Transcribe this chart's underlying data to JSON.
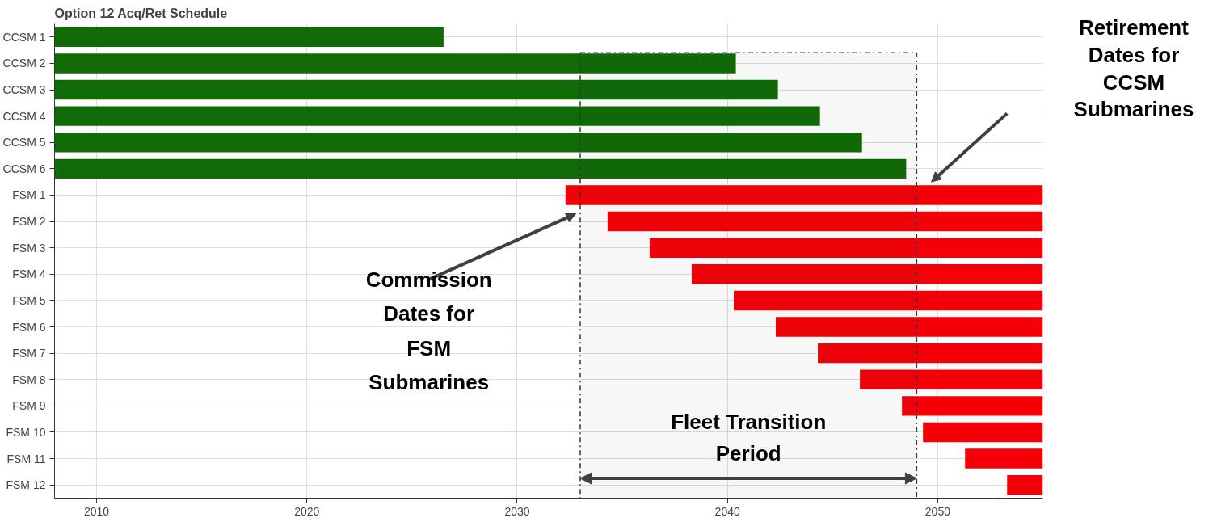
{
  "chart_data": {
    "type": "bar",
    "orientation": "horizontal",
    "title": "Option 12 Acq/Ret Schedule",
    "categories": [
      "CCSM 1",
      "CCSM 2",
      "CCSM 3",
      "CCSM 4",
      "CCSM 5",
      "CCSM 6",
      "FSM 1",
      "FSM 2",
      "FSM 3",
      "FSM 4",
      "FSM 5",
      "FSM 6",
      "FSM 7",
      "FSM 8",
      "FSM 9",
      "FSM 10",
      "FSM 11",
      "FSM 12"
    ],
    "base": [
      2008,
      2008,
      2008,
      2008,
      2008,
      2008,
      2032.3,
      2034.3,
      2036.3,
      2038.3,
      2040.3,
      2042.3,
      2044.3,
      2046.3,
      2048.3,
      2049.3,
      2051.3,
      2053.3
    ],
    "values": [
      18.5,
      32.4,
      34.4,
      36.4,
      38.4,
      40.5,
      22.7,
      20.7,
      18.7,
      16.7,
      14.7,
      12.7,
      10.7,
      8.7,
      6.7,
      5.7,
      3.7,
      1.7
    ],
    "colors": [
      "#106b06",
      "#106b06",
      "#106b06",
      "#106b06",
      "#106b06",
      "#106b06",
      "#f50008",
      "#f50008",
      "#f50008",
      "#f50008",
      "#f50008",
      "#f50008",
      "#f50008",
      "#f50008",
      "#f50008",
      "#f50008",
      "#f50008",
      "#f50008"
    ],
    "xlim": [
      2008,
      2055
    ],
    "xticks": [
      2010,
      2020,
      2030,
      2040,
      2050
    ],
    "grid": true,
    "bands": [
      {
        "axis": "x",
        "from": 2033,
        "to": 2049,
        "label": "Fleet Transition Period"
      }
    ],
    "annotations": [
      "Commission Dates for FSM Submarines",
      "Retirement Dates for CCSM Submarines"
    ]
  }
}
